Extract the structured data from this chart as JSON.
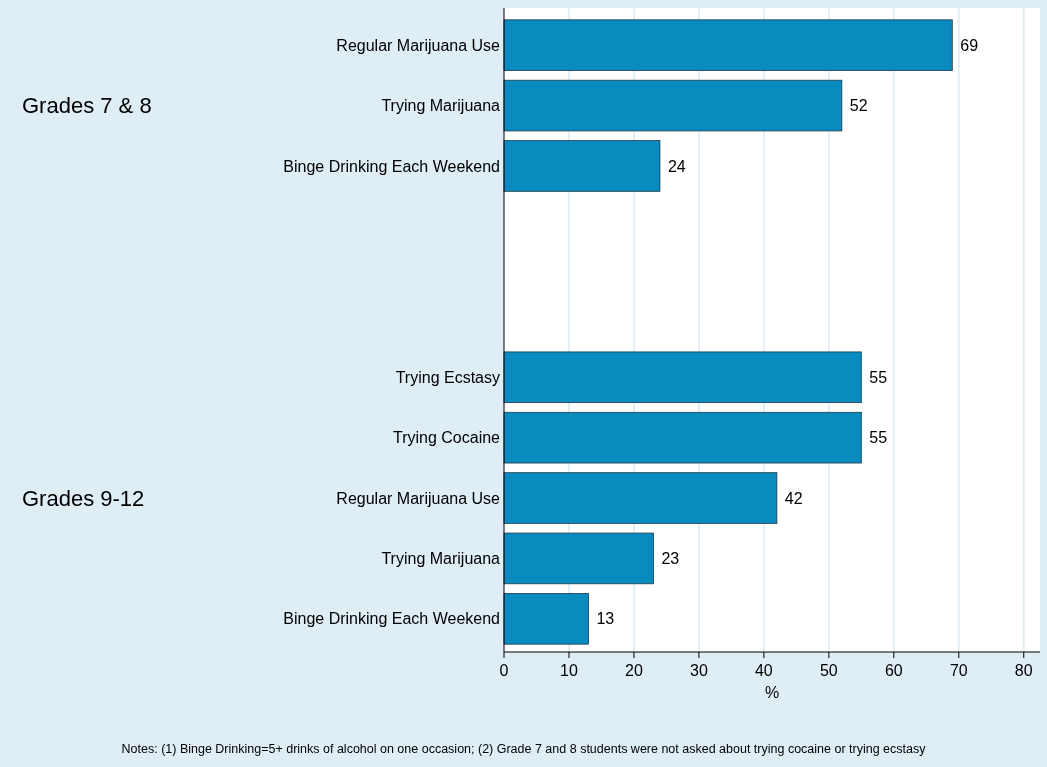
{
  "chart_data": {
    "type": "bar",
    "orientation": "horizontal",
    "categories": [
      "Regular Marijuana Use",
      "Trying Marijuana",
      "Binge Drinking Each Weekend",
      null,
      null,
      "Trying Ecstasy",
      "Trying Cocaine",
      "Regular Marijuana Use",
      "Trying Marijuana",
      "Binge Drinking Each Weekend"
    ],
    "values": [
      69,
      52,
      24,
      null,
      null,
      55,
      55,
      42,
      23,
      13
    ],
    "color": "#0a8bbf",
    "xlim": [
      0,
      82.5
    ],
    "xticks": [
      0,
      10,
      20,
      30,
      40,
      50,
      60,
      70,
      80
    ],
    "xlabel": "%",
    "grid": "x",
    "data_labels": true,
    "annotations": [
      "Grades 7 & 8",
      "Grades 9-12",
      "Notes: (1) Binge Drinking=5+ drinks of alcohol on one occasion; (2) Grade 7 and 8 students were not asked about trying cocaine or trying ecstasy"
    ]
  }
}
